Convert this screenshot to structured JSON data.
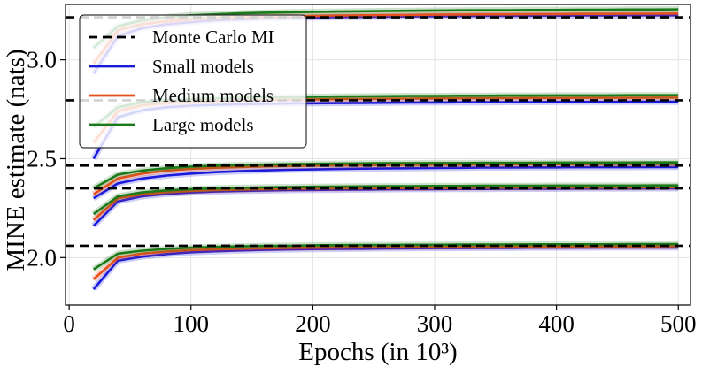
{
  "chart_data": {
    "type": "line",
    "title": "",
    "xlabel": "Epochs (in 10³)",
    "ylabel": "MINE estimate (nats)",
    "xlim": [
      -3,
      510
    ],
    "ylim": [
      1.76,
      3.28
    ],
    "xticks": [
      0,
      100,
      200,
      300,
      400,
      500
    ],
    "yticks": [
      2.0,
      2.5,
      3.0
    ],
    "ytick_labels": [
      "2.0",
      "2.5",
      "3.0"
    ],
    "grid": true,
    "legend_position": "top-left",
    "legend": [
      {
        "label": "Monte Carlo MI",
        "color": "#000000",
        "style": "dashed"
      },
      {
        "label": "Small models",
        "color": "#1a1adb",
        "style": "solid"
      },
      {
        "label": "Medium models",
        "color": "#e8501c",
        "style": "solid"
      },
      {
        "label": "Large models",
        "color": "#1a7a1a",
        "style": "solid"
      }
    ],
    "x": [
      20,
      40,
      60,
      80,
      100,
      120,
      140,
      160,
      180,
      200,
      220,
      240,
      260,
      280,
      300,
      320,
      340,
      360,
      380,
      400,
      420,
      440,
      460,
      480,
      500
    ],
    "monte_carlo_mi": [
      3.215,
      2.795,
      2.465,
      2.35,
      2.06
    ],
    "groups": [
      {
        "mc": 3.215,
        "small": [
          2.93,
          3.12,
          3.16,
          3.18,
          3.19,
          3.2,
          3.205,
          3.21,
          3.212,
          3.214,
          3.216,
          3.217,
          3.218,
          3.219,
          3.22,
          3.221,
          3.222,
          3.222,
          3.223,
          3.223,
          3.224,
          3.224,
          3.225,
          3.225,
          3.225
        ],
        "medium": [
          2.98,
          3.15,
          3.18,
          3.195,
          3.205,
          3.21,
          3.215,
          3.218,
          3.22,
          3.222,
          3.224,
          3.225,
          3.226,
          3.227,
          3.228,
          3.229,
          3.23,
          3.23,
          3.231,
          3.231,
          3.232,
          3.232,
          3.233,
          3.233,
          3.234
        ],
        "large": [
          3.06,
          3.17,
          3.2,
          3.215,
          3.225,
          3.23,
          3.235,
          3.238,
          3.24,
          3.242,
          3.244,
          3.245,
          3.247,
          3.248,
          3.249,
          3.25,
          3.251,
          3.251,
          3.252,
          3.252,
          3.253,
          3.253,
          3.254,
          3.254,
          3.255
        ]
      },
      {
        "mc": 2.795,
        "small": [
          2.5,
          2.71,
          2.745,
          2.76,
          2.768,
          2.772,
          2.775,
          2.777,
          2.779,
          2.78,
          2.781,
          2.782,
          2.783,
          2.784,
          2.784,
          2.785,
          2.785,
          2.786,
          2.786,
          2.787,
          2.787,
          2.787,
          2.788,
          2.788,
          2.788
        ],
        "medium": [
          2.58,
          2.74,
          2.77,
          2.782,
          2.788,
          2.792,
          2.795,
          2.797,
          2.799,
          2.8,
          2.801,
          2.802,
          2.803,
          2.804,
          2.805,
          2.805,
          2.806,
          2.806,
          2.807,
          2.807,
          2.808,
          2.808,
          2.808,
          2.809,
          2.809
        ],
        "large": [
          2.66,
          2.76,
          2.785,
          2.795,
          2.8,
          2.805,
          2.808,
          2.81,
          2.812,
          2.813,
          2.814,
          2.815,
          2.816,
          2.817,
          2.817,
          2.818,
          2.818,
          2.819,
          2.819,
          2.82,
          2.82,
          2.82,
          2.821,
          2.821,
          2.821
        ]
      },
      {
        "mc": 2.465,
        "small": [
          2.3,
          2.375,
          2.4,
          2.415,
          2.425,
          2.432,
          2.437,
          2.441,
          2.444,
          2.446,
          2.448,
          2.45,
          2.451,
          2.452,
          2.453,
          2.454,
          2.455,
          2.455,
          2.456,
          2.456,
          2.457,
          2.457,
          2.457,
          2.458,
          2.458
        ],
        "medium": [
          2.32,
          2.4,
          2.425,
          2.44,
          2.448,
          2.454,
          2.458,
          2.461,
          2.463,
          2.465,
          2.466,
          2.467,
          2.468,
          2.469,
          2.47,
          2.47,
          2.471,
          2.471,
          2.472,
          2.472,
          2.472,
          2.473,
          2.473,
          2.473,
          2.473
        ],
        "large": [
          2.35,
          2.42,
          2.44,
          2.452,
          2.46,
          2.465,
          2.468,
          2.47,
          2.472,
          2.474,
          2.475,
          2.476,
          2.477,
          2.477,
          2.478,
          2.478,
          2.479,
          2.479,
          2.479,
          2.48,
          2.48,
          2.48,
          2.48,
          2.481,
          2.481
        ]
      },
      {
        "mc": 2.35,
        "small": [
          2.16,
          2.285,
          2.31,
          2.322,
          2.329,
          2.334,
          2.337,
          2.339,
          2.341,
          2.342,
          2.343,
          2.344,
          2.345,
          2.346,
          2.346,
          2.347,
          2.347,
          2.348,
          2.348,
          2.348,
          2.349,
          2.349,
          2.349,
          2.35,
          2.35
        ],
        "medium": [
          2.19,
          2.3,
          2.32,
          2.331,
          2.337,
          2.341,
          2.344,
          2.346,
          2.348,
          2.349,
          2.35,
          2.351,
          2.352,
          2.352,
          2.353,
          2.353,
          2.354,
          2.354,
          2.354,
          2.355,
          2.355,
          2.355,
          2.355,
          2.356,
          2.356
        ],
        "large": [
          2.22,
          2.31,
          2.33,
          2.34,
          2.346,
          2.35,
          2.353,
          2.355,
          2.357,
          2.358,
          2.359,
          2.36,
          2.361,
          2.361,
          2.362,
          2.362,
          2.363,
          2.363,
          2.363,
          2.364,
          2.364,
          2.364,
          2.364,
          2.365,
          2.365
        ]
      },
      {
        "mc": 2.06,
        "small": [
          1.84,
          1.985,
          2.005,
          2.018,
          2.027,
          2.032,
          2.036,
          2.039,
          2.041,
          2.043,
          2.044,
          2.045,
          2.046,
          2.047,
          2.048,
          2.048,
          2.049,
          2.049,
          2.05,
          2.05,
          2.05,
          2.051,
          2.051,
          2.051,
          2.051
        ],
        "medium": [
          1.89,
          2.0,
          2.02,
          2.031,
          2.038,
          2.042,
          2.045,
          2.047,
          2.049,
          2.05,
          2.051,
          2.052,
          2.053,
          2.054,
          2.054,
          2.055,
          2.055,
          2.056,
          2.056,
          2.056,
          2.057,
          2.057,
          2.057,
          2.057,
          2.058
        ],
        "large": [
          1.94,
          2.02,
          2.035,
          2.044,
          2.05,
          2.054,
          2.057,
          2.059,
          2.06,
          2.062,
          2.063,
          2.064,
          2.064,
          2.065,
          2.065,
          2.066,
          2.066,
          2.066,
          2.067,
          2.067,
          2.067,
          2.067,
          2.068,
          2.068,
          2.068
        ]
      }
    ]
  }
}
